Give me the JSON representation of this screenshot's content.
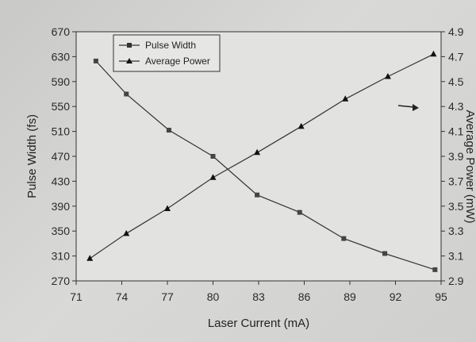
{
  "chart_data": {
    "type": "line",
    "xlabel": "Laser Current (mA)",
    "ylabel_left": "Pulse Width (fs)",
    "ylabel_right": "Average Power (mW)",
    "x_ticks": [
      71,
      74,
      77,
      80,
      83,
      86,
      89,
      92,
      95
    ],
    "xlim": [
      71,
      95
    ],
    "y_left_ticks": [
      270,
      310,
      350,
      390,
      430,
      470,
      510,
      550,
      590,
      630,
      670
    ],
    "y_left_lim": [
      270,
      670
    ],
    "y_right_ticks": [
      "2.9",
      "3.1",
      "3.3",
      "3.5",
      "3.7",
      "3.9",
      "4.1",
      "4.3",
      "4.5",
      "4.7",
      "4.9"
    ],
    "y_right_lim": [
      2.9,
      4.9
    ],
    "legend_position": "top-left",
    "grid": false,
    "series": [
      {
        "name": "Pulse Width",
        "axis": "left",
        "marker": "square",
        "color": "#333333",
        "x": [
          72.3,
          74.3,
          77.1,
          80.0,
          82.9,
          85.7,
          88.6,
          91.3,
          94.6
        ],
        "y": [
          623,
          570,
          512,
          470,
          408,
          380,
          338,
          314,
          288
        ]
      },
      {
        "name": "Average Power",
        "axis": "right",
        "marker": "triangle",
        "color": "#333333",
        "x": [
          71.9,
          74.3,
          77.0,
          80.0,
          82.9,
          85.8,
          88.7,
          91.5,
          94.5
        ],
        "y": [
          3.08,
          3.28,
          3.48,
          3.73,
          3.93,
          4.14,
          4.36,
          4.54,
          4.72
        ]
      }
    ]
  }
}
